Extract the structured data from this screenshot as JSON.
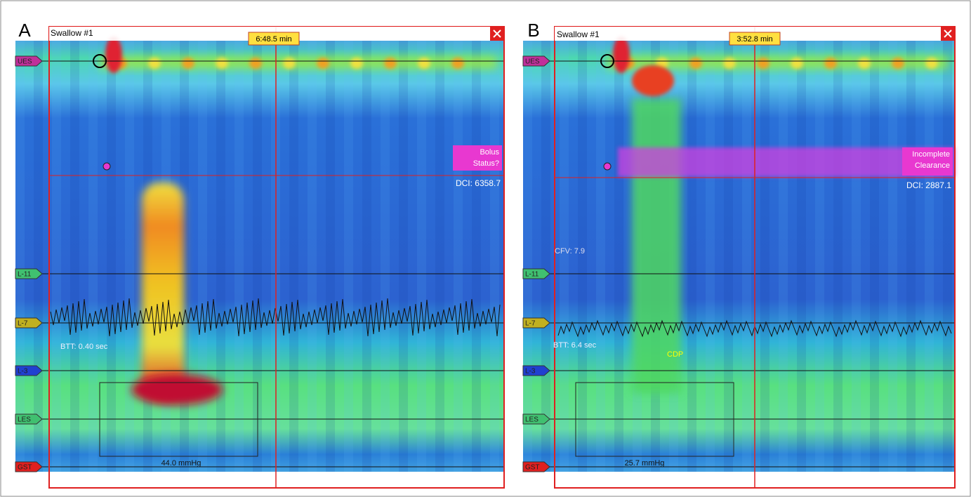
{
  "panels": [
    {
      "letter": "A",
      "title": "Swallow #1",
      "time": "6:48.5 min",
      "status": [
        "Bolus",
        "Status?"
      ],
      "dci": "DCI: 6358.7",
      "btt": "BTT: 0.40 sec",
      "pressure": "44.0 mmHg",
      "sensors": [
        "UES",
        "L-11",
        "L-7",
        "L-3",
        "LES",
        "GST"
      ]
    },
    {
      "letter": "B",
      "title": "Swallow #1",
      "time": "3:52.8 min",
      "status": [
        "Incomplete",
        "Clearance"
      ],
      "dci": "DCI: 2887.1",
      "btt": "BTT: 6.4 sec",
      "pressure": "25.7 mmHg",
      "cfv": "CFV: 7.9",
      "cdp": "CDP",
      "sensors": [
        "UES",
        "L-11",
        "L-7",
        "L-3",
        "LES",
        "GST"
      ]
    }
  ]
}
